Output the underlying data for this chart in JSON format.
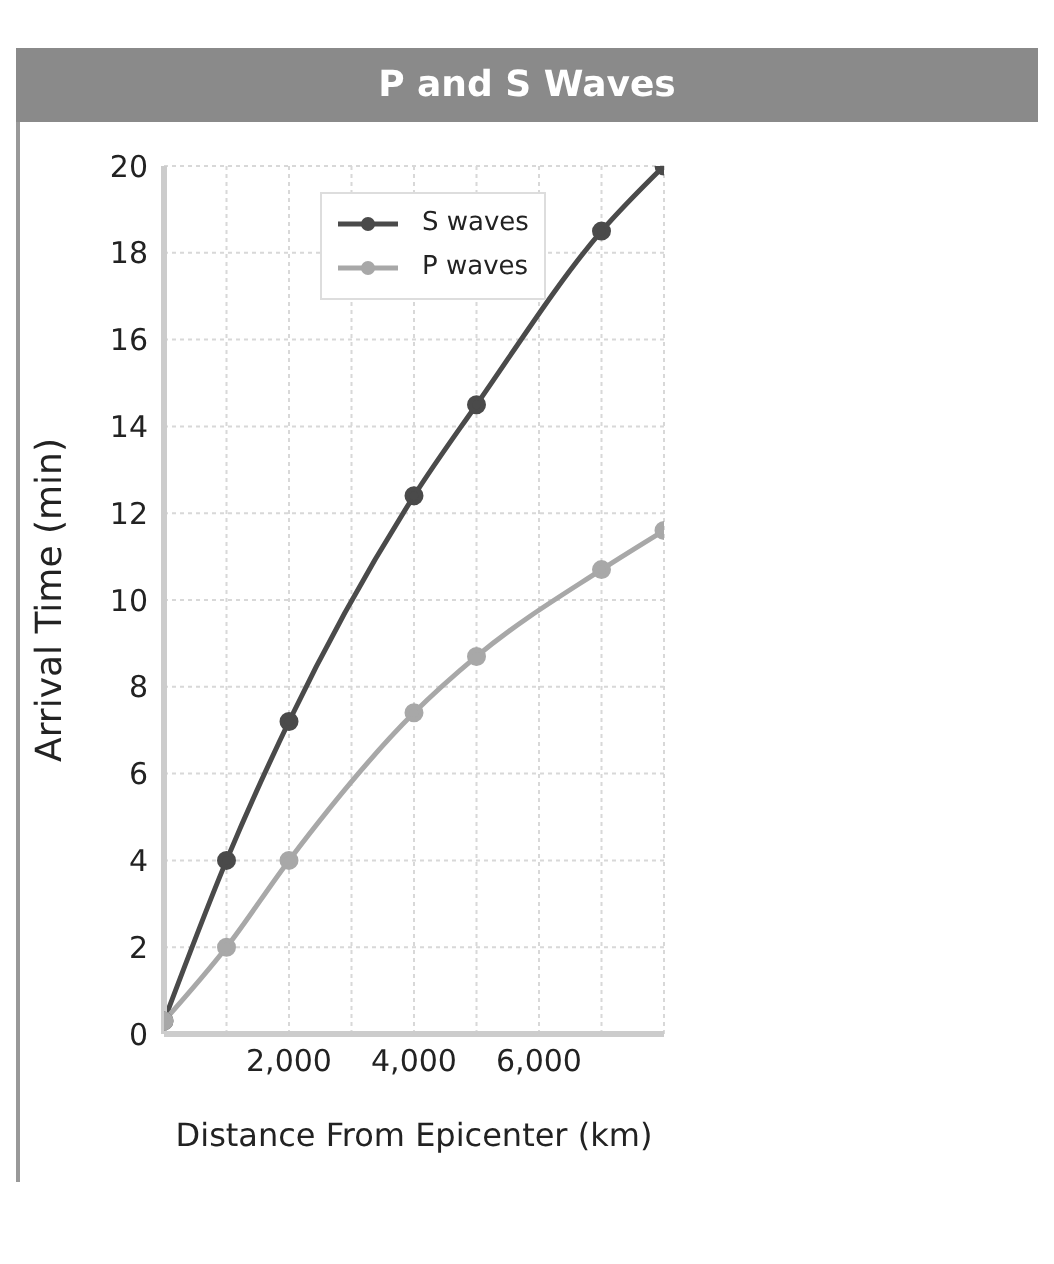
{
  "chart_data": {
    "type": "line",
    "title": "P and S Waves",
    "xlabel": "Distance From Epicenter (km)",
    "ylabel": "Arrival Time (min)",
    "x": [
      0,
      1000,
      2000,
      4000,
      5000,
      7000,
      8000
    ],
    "series": [
      {
        "name": "S waves",
        "color": "#4a4a4a",
        "values": [
          0.3,
          4,
          7.2,
          12.4,
          14.5,
          18.5,
          20
        ]
      },
      {
        "name": "P waves",
        "color": "#a8a8a8",
        "values": [
          0.3,
          2,
          4,
          7.4,
          8.7,
          10.7,
          11.6
        ]
      }
    ],
    "xlim": [
      0,
      8000
    ],
    "xticks": [
      {
        "value": 0,
        "label": null
      },
      {
        "value": 1000,
        "label": null
      },
      {
        "value": 2000,
        "label": "2,000"
      },
      {
        "value": 3000,
        "label": null
      },
      {
        "value": 4000,
        "label": "4,000"
      },
      {
        "value": 5000,
        "label": null
      },
      {
        "value": 6000,
        "label": "6,000"
      },
      {
        "value": 7000,
        "label": null
      },
      {
        "value": 8000,
        "label": null
      }
    ],
    "ylim": [
      0,
      20
    ],
    "yticks": [
      0,
      2,
      4,
      6,
      8,
      10,
      12,
      14,
      16,
      18,
      20
    ],
    "grid": true,
    "legend": "top left",
    "marker": "circle",
    "line_style": "solid"
  }
}
